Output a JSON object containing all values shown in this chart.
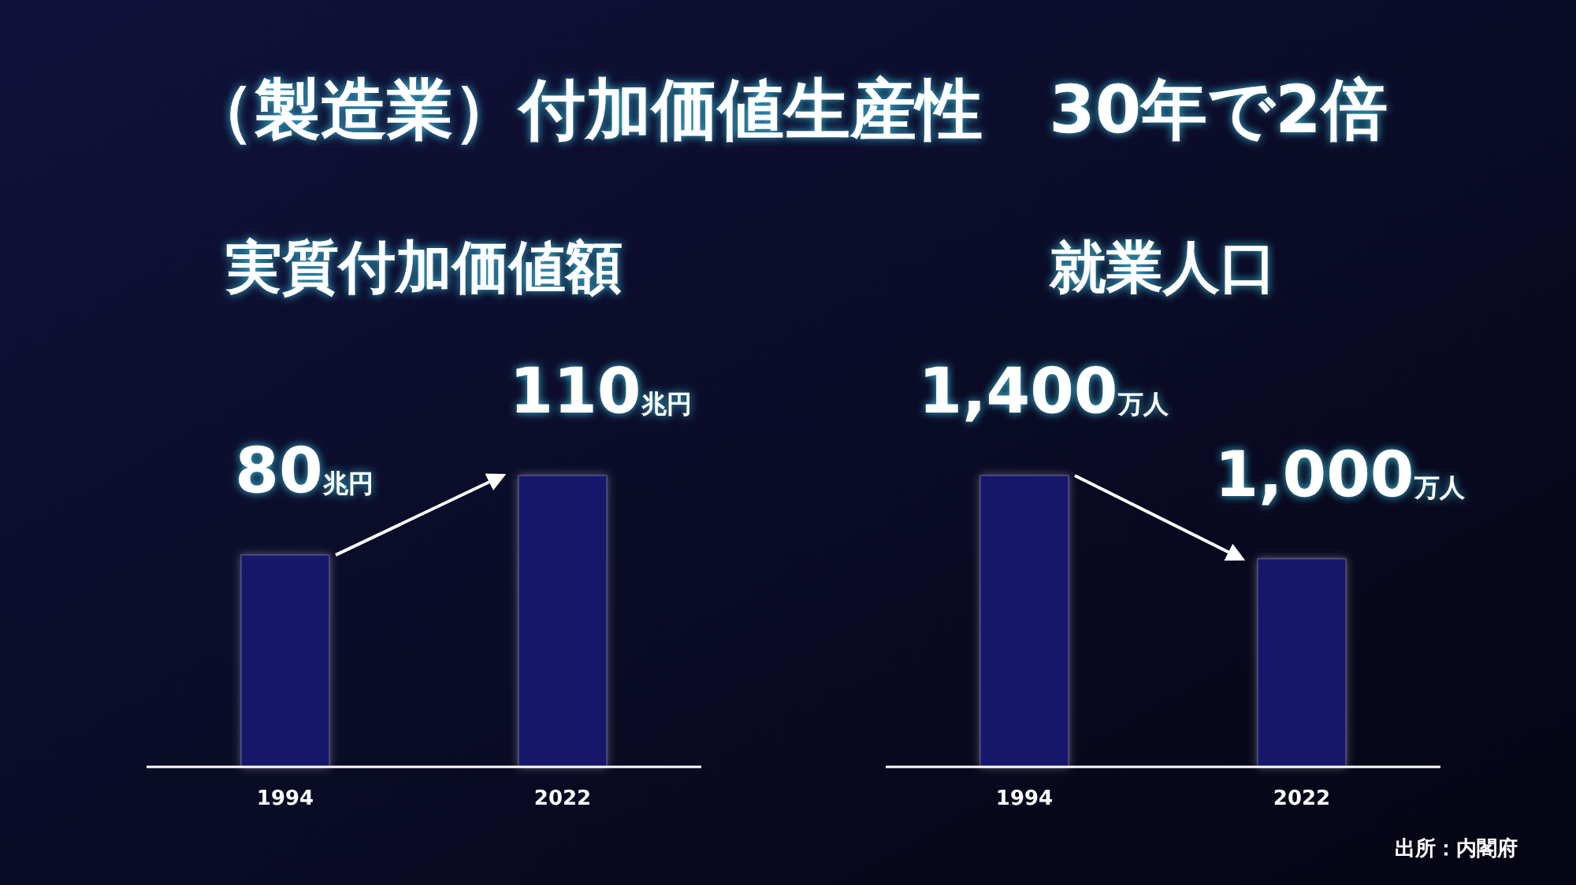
{
  "chart_data": [
    {
      "type": "bar",
      "title": "実質付加価値額",
      "categories": [
        "1994",
        "2022"
      ],
      "values": [
        80,
        110
      ],
      "value_labels": [
        "80兆円",
        "110兆円"
      ],
      "color": "#15156a",
      "annotations": [
        "（製造業）付加価値生産性　30年で2倍"
      ]
    },
    {
      "type": "bar",
      "title": "就業人口",
      "categories": [
        "1994",
        "2022"
      ],
      "values": [
        1400,
        1000
      ],
      "value_labels": [
        "1,400万人",
        "1,000万人"
      ],
      "color": "#15156a",
      "annotations": [
        "出所：内閣府"
      ]
    }
  ]
}
